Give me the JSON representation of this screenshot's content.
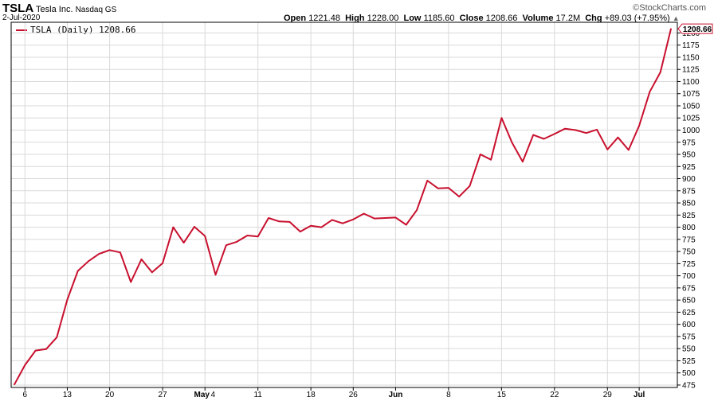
{
  "header": {
    "symbol": "TSLA",
    "company": "Tesla Inc.",
    "exchange": "Nasdaq GS",
    "date": "2-Jul-2020",
    "watermark": "©StockCharts.com",
    "open_label": "Open",
    "open": "1221.48",
    "high_label": "High",
    "high": "1228.00",
    "low_label": "Low",
    "low": "1185.60",
    "close_label": "Close",
    "close": "1208.66",
    "volume_label": "Volume",
    "volume": "17.2M",
    "chg_label": "Chg",
    "chg": "+89.03 (+7.95%)",
    "chg_arrow": "up-triangle-icon"
  },
  "legend": {
    "text": "TSLA (Daily) 1208.66"
  },
  "colors": {
    "line": "#c8102e",
    "grid": "#d9d9d9",
    "axis": "#000000",
    "last_box_border": "#c8102e"
  },
  "chart_data": {
    "type": "line",
    "series": [
      {
        "name": "TSLA (Daily)",
        "last_label": "1208.66",
        "values": [
          476,
          516,
          546,
          549,
          573,
          651,
          710,
          730,
          745,
          753,
          748,
          687,
          734,
          707,
          726,
          800,
          768,
          801,
          782,
          702,
          763,
          770,
          783,
          781,
          819,
          812,
          811,
          791,
          803,
          800,
          815,
          808,
          816,
          828,
          818,
          819,
          820,
          805,
          835,
          896,
          880,
          881,
          863,
          885,
          950,
          939,
          1025,
          974,
          935,
          990,
          982,
          992,
          1003,
          1000,
          994,
          1001,
          960,
          985,
          959,
          1009,
          1079,
          1119,
          1208.66
        ]
      }
    ],
    "x_ticks": [
      {
        "label": "6",
        "index": 1
      },
      {
        "label": "13",
        "index": 5
      },
      {
        "label": "20",
        "index": 9
      },
      {
        "label": "27",
        "index": 14
      },
      {
        "label": "May",
        "index": 18,
        "bold": true
      },
      {
        "label": "4",
        "index": 18
      },
      {
        "label": "11",
        "index": 23
      },
      {
        "label": "18",
        "index": 28
      },
      {
        "label": "26",
        "index": 32
      },
      {
        "label": "Jun",
        "index": 36,
        "bold": true
      },
      {
        "label": "8",
        "index": 41
      },
      {
        "label": "15",
        "index": 46
      },
      {
        "label": "22",
        "index": 51
      },
      {
        "label": "29",
        "index": 56
      },
      {
        "label": "Jul",
        "index": 59,
        "bold": true
      }
    ],
    "y_ticks": [
      475,
      500,
      525,
      550,
      575,
      600,
      625,
      650,
      675,
      700,
      725,
      750,
      775,
      800,
      825,
      850,
      875,
      900,
      925,
      950,
      975,
      1000,
      1025,
      1050,
      1075,
      1100,
      1125,
      1150,
      1175,
      1200
    ],
    "ylim": [
      470,
      1222
    ],
    "grid": true,
    "legend_position": "top-left"
  }
}
